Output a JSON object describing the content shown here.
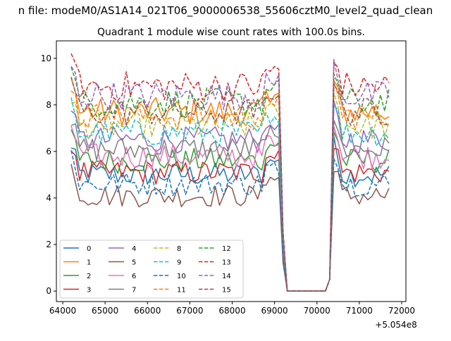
{
  "chart_data": {
    "type": "line",
    "suptitle": "n file: modeM0/AS1A14_021T06_9000006538_55606cztM0_level2_quad_clean",
    "title": "Quadrant 1 module wise count rates with 100.0s bins.",
    "xlabel": "",
    "ylabel": "",
    "x_offset_label": "+5.054e8",
    "xlim": [
      63850,
      72100
    ],
    "ylim": [
      -0.45,
      10.75
    ],
    "xticks": [
      64000,
      65000,
      66000,
      67000,
      68000,
      69000,
      70000,
      71000,
      72000
    ],
    "yticks": [
      0,
      2,
      4,
      6,
      8,
      10
    ],
    "grid": false,
    "legend_position": "lower-left",
    "legend_columns": 4,
    "x_start": 64200,
    "x_step": 100,
    "series": [
      {
        "name": "0",
        "color": "#1f77b4",
        "dash": false,
        "base": 5.0
      },
      {
        "name": "1",
        "color": "#ff7f0e",
        "dash": false,
        "base": 7.7
      },
      {
        "name": "2",
        "color": "#2ca02c",
        "dash": false,
        "base": 5.6
      },
      {
        "name": "3",
        "color": "#d62728",
        "dash": false,
        "base": 5.1
      },
      {
        "name": "4",
        "color": "#9467bd",
        "dash": false,
        "base": 6.5
      },
      {
        "name": "5",
        "color": "#8c564b",
        "dash": false,
        "base": 4.1
      },
      {
        "name": "6",
        "color": "#e377c2",
        "dash": false,
        "base": 5.8
      },
      {
        "name": "7",
        "color": "#7f7f7f",
        "dash": false,
        "base": 6.1
      },
      {
        "name": "8",
        "color": "#bcbd22",
        "dash": true,
        "base": 7.1
      },
      {
        "name": "9",
        "color": "#17becf",
        "dash": true,
        "base": 6.8
      },
      {
        "name": "10",
        "color": "#1f77b4",
        "dash": true,
        "base": 4.6
      },
      {
        "name": "11",
        "color": "#ff7f0e",
        "dash": true,
        "base": 7.5
      },
      {
        "name": "12",
        "color": "#2ca02c",
        "dash": true,
        "base": 8.1
      },
      {
        "name": "13",
        "color": "#d62728",
        "dash": true,
        "base": 8.8
      },
      {
        "name": "14",
        "color": "#9467bd",
        "dash": true,
        "base": 8.4
      },
      {
        "name": "15",
        "color": "#8c564b",
        "dash": true,
        "base": 7.7
      }
    ],
    "gap": {
      "drop_start": 69100,
      "zero_from": 69300,
      "zero_to": 70200,
      "rise_end": 70400
    }
  }
}
